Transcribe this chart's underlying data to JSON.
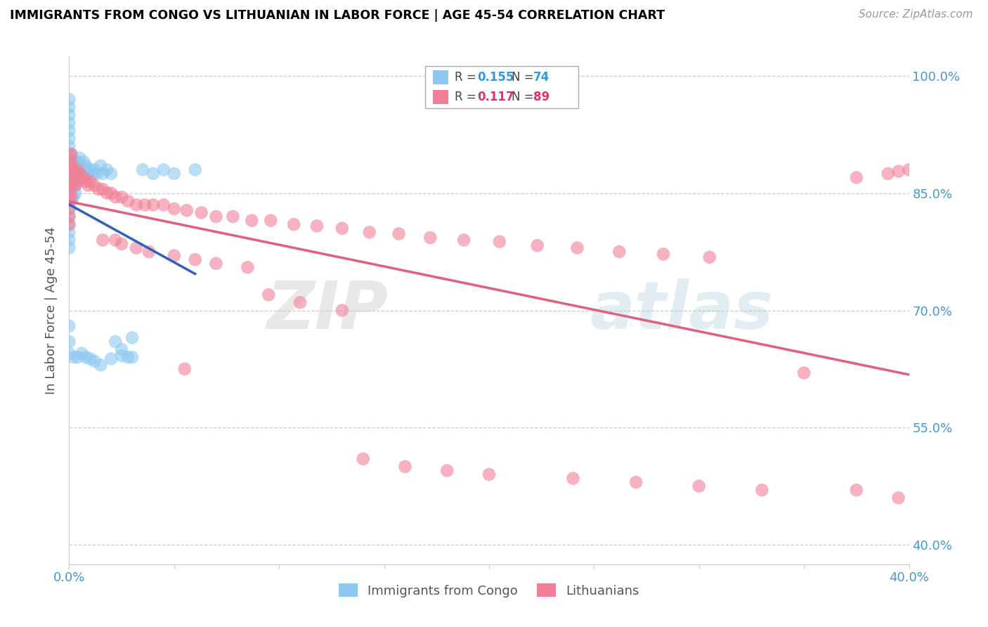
{
  "title": "IMMIGRANTS FROM CONGO VS LITHUANIAN IN LABOR FORCE | AGE 45-54 CORRELATION CHART",
  "source_text": "Source: ZipAtlas.com",
  "ylabel_label": "In Labor Force | Age 45-54",
  "ytick_labels": [
    "40.0%",
    "55.0%",
    "70.0%",
    "85.0%",
    "100.0%"
  ],
  "ytick_values": [
    0.4,
    0.55,
    0.7,
    0.85,
    1.0
  ],
  "xlim": [
    0.0,
    0.4
  ],
  "ylim": [
    0.375,
    1.025
  ],
  "color_congo": "#8DC8F0",
  "color_lithuanian": "#F08098",
  "color_trendline_congo": "#3060B8",
  "color_trendline_lithuanian": "#E06080",
  "congo_x": [
    0.0,
    0.0,
    0.0,
    0.0,
    0.0,
    0.0,
    0.0,
    0.0,
    0.0,
    0.0,
    0.0,
    0.0,
    0.0,
    0.0,
    0.0,
    0.0,
    0.0,
    0.0,
    0.0,
    0.0,
    0.001,
    0.001,
    0.001,
    0.001,
    0.001,
    0.001,
    0.002,
    0.002,
    0.002,
    0.003,
    0.003,
    0.003,
    0.004,
    0.004,
    0.005,
    0.005,
    0.006,
    0.007,
    0.008,
    0.009,
    0.01,
    0.011,
    0.012,
    0.013,
    0.015,
    0.016,
    0.018,
    0.02,
    0.022,
    0.025,
    0.028,
    0.03,
    0.001,
    0.002,
    0.003,
    0.0,
    0.0,
    0.0,
    0.035,
    0.04,
    0.045,
    0.05,
    0.06,
    0.002,
    0.004,
    0.006,
    0.008,
    0.01,
    0.012,
    0.015,
    0.02,
    0.025,
    0.03
  ],
  "congo_y": [
    0.97,
    0.96,
    0.95,
    0.94,
    0.93,
    0.92,
    0.91,
    0.9,
    0.89,
    0.88,
    0.87,
    0.86,
    0.85,
    0.84,
    0.83,
    0.82,
    0.81,
    0.8,
    0.79,
    0.78,
    0.9,
    0.89,
    0.88,
    0.87,
    0.86,
    0.85,
    0.89,
    0.88,
    0.86,
    0.89,
    0.88,
    0.86,
    0.89,
    0.875,
    0.895,
    0.88,
    0.885,
    0.89,
    0.885,
    0.875,
    0.88,
    0.875,
    0.88,
    0.875,
    0.885,
    0.875,
    0.88,
    0.875,
    0.66,
    0.65,
    0.64,
    0.665,
    0.84,
    0.845,
    0.85,
    0.68,
    0.66,
    0.645,
    0.88,
    0.875,
    0.88,
    0.875,
    0.88,
    0.64,
    0.64,
    0.645,
    0.64,
    0.638,
    0.635,
    0.63,
    0.638,
    0.642,
    0.64
  ],
  "lith_x": [
    0.0,
    0.0,
    0.0,
    0.0,
    0.0,
    0.0,
    0.0,
    0.0,
    0.0,
    0.0,
    0.001,
    0.001,
    0.001,
    0.001,
    0.001,
    0.002,
    0.002,
    0.003,
    0.003,
    0.004,
    0.004,
    0.005,
    0.006,
    0.007,
    0.008,
    0.009,
    0.01,
    0.012,
    0.014,
    0.016,
    0.018,
    0.02,
    0.022,
    0.025,
    0.028,
    0.032,
    0.036,
    0.04,
    0.045,
    0.05,
    0.056,
    0.063,
    0.07,
    0.078,
    0.087,
    0.096,
    0.107,
    0.118,
    0.13,
    0.143,
    0.157,
    0.172,
    0.188,
    0.205,
    0.223,
    0.242,
    0.262,
    0.283,
    0.305,
    0.095,
    0.11,
    0.13,
    0.016,
    0.022,
    0.025,
    0.032,
    0.038,
    0.05,
    0.06,
    0.07,
    0.085,
    0.055,
    0.14,
    0.16,
    0.18,
    0.2,
    0.24,
    0.27,
    0.3,
    0.33,
    0.35,
    0.375,
    0.395,
    0.375,
    0.39,
    0.395,
    0.4
  ],
  "lith_y": [
    0.9,
    0.89,
    0.88,
    0.87,
    0.86,
    0.85,
    0.84,
    0.83,
    0.82,
    0.81,
    0.9,
    0.89,
    0.88,
    0.86,
    0.845,
    0.88,
    0.865,
    0.875,
    0.86,
    0.88,
    0.865,
    0.875,
    0.87,
    0.87,
    0.865,
    0.86,
    0.865,
    0.86,
    0.855,
    0.855,
    0.85,
    0.85,
    0.845,
    0.845,
    0.84,
    0.835,
    0.835,
    0.835,
    0.835,
    0.83,
    0.828,
    0.825,
    0.82,
    0.82,
    0.815,
    0.815,
    0.81,
    0.808,
    0.805,
    0.8,
    0.798,
    0.793,
    0.79,
    0.788,
    0.783,
    0.78,
    0.775,
    0.772,
    0.768,
    0.72,
    0.71,
    0.7,
    0.79,
    0.79,
    0.785,
    0.78,
    0.775,
    0.77,
    0.765,
    0.76,
    0.755,
    0.625,
    0.51,
    0.5,
    0.495,
    0.49,
    0.485,
    0.48,
    0.475,
    0.47,
    0.62,
    0.47,
    0.46,
    0.87,
    0.875,
    0.878,
    0.88
  ]
}
